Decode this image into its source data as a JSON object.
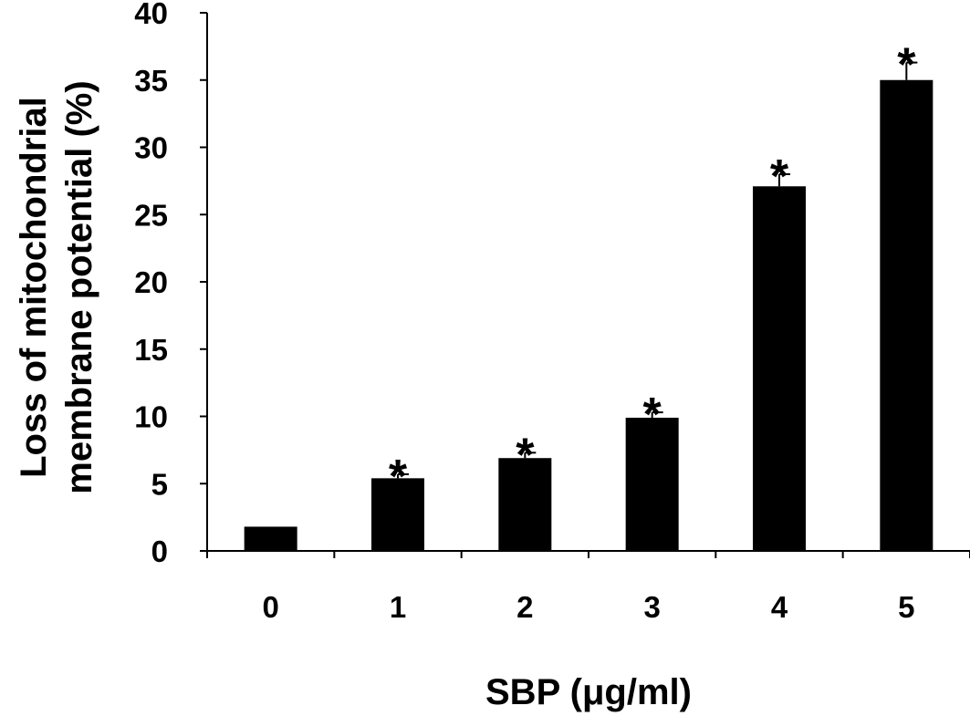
{
  "chart_data": {
    "type": "bar",
    "title": "",
    "xlabel": "SBP (μg/ml)",
    "ylabel": [
      "Loss of mitochondrial",
      "membrane potential (%)"
    ],
    "categories": [
      "0",
      "1",
      "2",
      "3",
      "4",
      "5"
    ],
    "values": [
      1.8,
      5.4,
      6.9,
      9.9,
      27.1,
      35.0
    ],
    "errors": [
      0.0,
      0.3,
      0.4,
      0.4,
      0.9,
      1.3
    ],
    "significance": [
      "",
      "*",
      "*",
      "*",
      "*",
      "*"
    ],
    "ylim": [
      0,
      40
    ],
    "yticks": [
      "0",
      "5",
      "10",
      "15",
      "20",
      "25",
      "30",
      "35",
      "40"
    ],
    "bar_color": "#000000",
    "grid": false,
    "legend": false
  }
}
